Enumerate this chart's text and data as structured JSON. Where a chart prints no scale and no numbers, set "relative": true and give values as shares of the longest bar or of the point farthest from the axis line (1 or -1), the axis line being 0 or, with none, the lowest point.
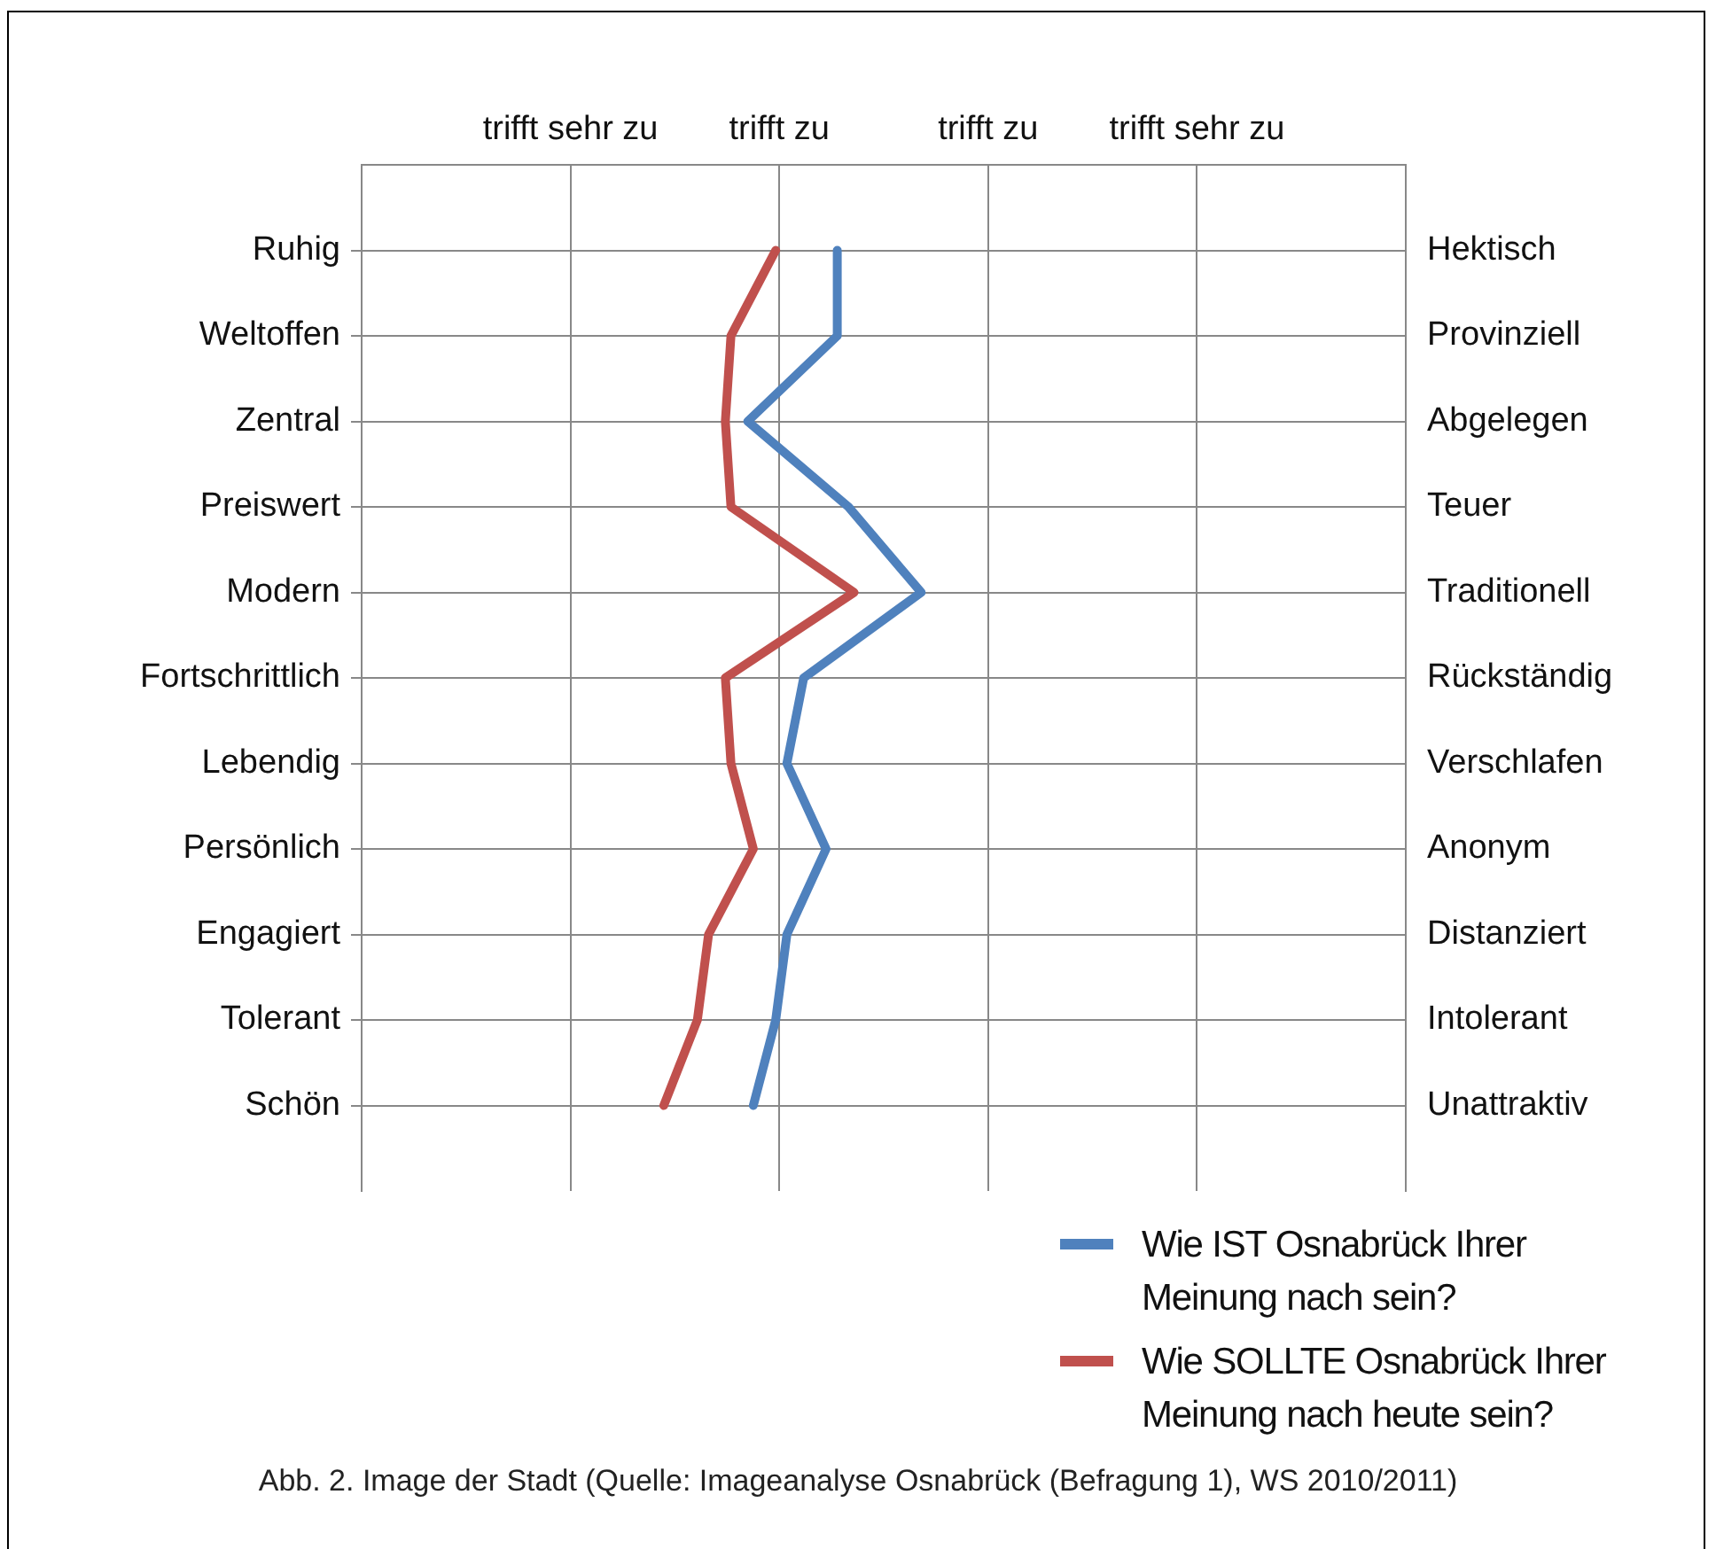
{
  "chart_data": {
    "type": "line",
    "orientation": "horizontal",
    "categories": [
      "Ruhig",
      "Weltoffen",
      "Zentral",
      "Preiswert",
      "Modern",
      "Fortschrittlich",
      "Lebendig",
      "Persönlich",
      "Engagiert",
      "Tolerant",
      "Schön"
    ],
    "y2_categories": [
      "Hektisch",
      "Provinziell",
      "Abgelegen",
      "Teuer",
      "Traditionell",
      "Rückständig",
      "Verschlafen",
      "Anonym",
      "Distanziert",
      "Intolerant",
      "Unattraktiv"
    ],
    "relative": true,
    "series": [
      {
        "name": "Wie IST Osnabrück Ihrer Meinung nach sein?",
        "color": "#4f81bd",
        "values": [
          0.85,
          0.85,
          0.69,
          0.87,
          1,
          0.79,
          0.76,
          0.83,
          0.76,
          0.74,
          0.7
        ]
      },
      {
        "name": "Wie SOLLTE Osnabrück Ihrer Meinung nach heute  sein?",
        "color": "#c0504d",
        "values": [
          0.74,
          0.66,
          0.65,
          0.66,
          0.88,
          0.65,
          0.66,
          0.7,
          0.62,
          0.6,
          0.54
        ]
      }
    ],
    "grid": true,
    "legend": "bottom right",
    "marker": "none",
    "line_style": "solid",
    "annotations": [
      "trifft sehr zu",
      "trifft zu",
      "trifft zu",
      "trifft sehr zu",
      "Abb. 2. Image der Stadt (Quelle: Imageanalyse Osnabrück (Befragung 1), WS 2010/2011)"
    ]
  }
}
